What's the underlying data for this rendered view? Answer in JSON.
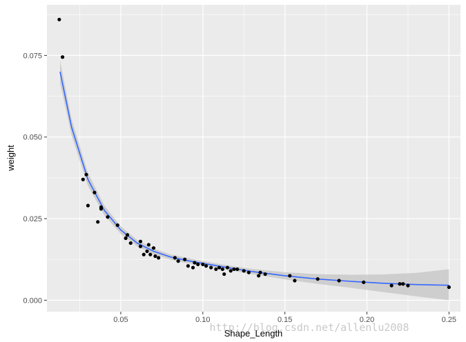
{
  "chart_data": {
    "type": "scatter",
    "xlabel": "Shape_Length",
    "ylabel": "weight",
    "xlim": [
      0.005,
      0.257
    ],
    "ylim": [
      -0.0035,
      0.0905
    ],
    "x_ticks": [
      0.05,
      0.1,
      0.15,
      0.2,
      0.25
    ],
    "x_tick_labels": [
      "0.05",
      "0.10",
      "0.15",
      "0.20",
      "0.25"
    ],
    "y_ticks": [
      0.0,
      0.025,
      0.05,
      0.075
    ],
    "y_tick_labels": [
      "0.000",
      "0.025",
      "0.050",
      "0.075"
    ],
    "grid": true,
    "panel_background": "#ebebeb",
    "grid_color": "#ffffff",
    "point_color": "#000000",
    "smooth_line_color": "#3366ff",
    "ribbon_color": "#bebebe",
    "points": [
      [
        0.0125,
        0.086
      ],
      [
        0.0145,
        0.0745
      ],
      [
        0.027,
        0.037
      ],
      [
        0.029,
        0.0385
      ],
      [
        0.03,
        0.029
      ],
      [
        0.034,
        0.033
      ],
      [
        0.036,
        0.024
      ],
      [
        0.038,
        0.0285
      ],
      [
        0.038,
        0.028
      ],
      [
        0.042,
        0.0255
      ],
      [
        0.048,
        0.023
      ],
      [
        0.053,
        0.019
      ],
      [
        0.054,
        0.02
      ],
      [
        0.056,
        0.0175
      ],
      [
        0.062,
        0.018
      ],
      [
        0.062,
        0.0165
      ],
      [
        0.064,
        0.014
      ],
      [
        0.066,
        0.015
      ],
      [
        0.067,
        0.017
      ],
      [
        0.068,
        0.014
      ],
      [
        0.07,
        0.016
      ],
      [
        0.071,
        0.0135
      ],
      [
        0.073,
        0.013
      ],
      [
        0.083,
        0.013
      ],
      [
        0.085,
        0.012
      ],
      [
        0.089,
        0.0125
      ],
      [
        0.091,
        0.0105
      ],
      [
        0.094,
        0.01
      ],
      [
        0.095,
        0.0115
      ],
      [
        0.097,
        0.011
      ],
      [
        0.1,
        0.011
      ],
      [
        0.102,
        0.0105
      ],
      [
        0.105,
        0.01
      ],
      [
        0.108,
        0.0095
      ],
      [
        0.11,
        0.01
      ],
      [
        0.112,
        0.0095
      ],
      [
        0.113,
        0.008
      ],
      [
        0.115,
        0.01
      ],
      [
        0.117,
        0.009
      ],
      [
        0.119,
        0.0095
      ],
      [
        0.121,
        0.0095
      ],
      [
        0.125,
        0.009
      ],
      [
        0.128,
        0.0085
      ],
      [
        0.134,
        0.0075
      ],
      [
        0.135,
        0.0085
      ],
      [
        0.138,
        0.008
      ],
      [
        0.153,
        0.0075
      ],
      [
        0.156,
        0.006
      ],
      [
        0.17,
        0.0065
      ],
      [
        0.183,
        0.006
      ],
      [
        0.198,
        0.0055
      ],
      [
        0.215,
        0.0045
      ],
      [
        0.22,
        0.005
      ],
      [
        0.222,
        0.005
      ],
      [
        0.225,
        0.0045
      ],
      [
        0.25,
        0.004
      ]
    ],
    "smooth_fit": {
      "x": [
        0.013,
        0.02,
        0.03,
        0.04,
        0.05,
        0.06,
        0.07,
        0.08,
        0.09,
        0.1,
        0.115,
        0.13,
        0.15,
        0.17,
        0.19,
        0.21,
        0.23,
        0.25
      ],
      "y": [
        0.07,
        0.053,
        0.037,
        0.0275,
        0.0215,
        0.0175,
        0.015,
        0.0133,
        0.0122,
        0.0113,
        0.01,
        0.0088,
        0.0075,
        0.0065,
        0.0058,
        0.0052,
        0.0048,
        0.0046
      ],
      "lower": [
        0.0665,
        0.0505,
        0.035,
        0.026,
        0.0203,
        0.0165,
        0.0141,
        0.0125,
        0.0114,
        0.0106,
        0.0093,
        0.008,
        0.0064,
        0.005,
        0.0038,
        0.0025,
        0.0012,
        0.0
      ],
      "upper": [
        0.0735,
        0.0555,
        0.039,
        0.029,
        0.0227,
        0.0185,
        0.0159,
        0.0141,
        0.013,
        0.012,
        0.0107,
        0.0096,
        0.0086,
        0.008,
        0.0078,
        0.0079,
        0.0084,
        0.0095
      ]
    }
  },
  "watermark": "http://blog.csdn.net/allenlu2008"
}
